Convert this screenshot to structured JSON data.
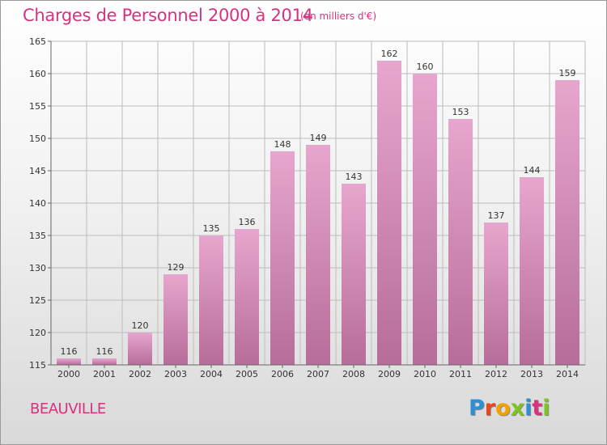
{
  "header": {
    "title": "Charges de Personnel 2000 à 2014",
    "subtitle": "(en milliers d'€)"
  },
  "footer": {
    "commune": "BEAUVILLE",
    "logo_letters": [
      "P",
      "r",
      "o",
      "x",
      "i",
      "t",
      "i"
    ],
    "logo_colors": [
      "#2e8fd6",
      "#e8481c",
      "#f2a200",
      "#7cc41e",
      "#2e8fd6",
      "#d9307f",
      "#7cc41e"
    ]
  },
  "colors": {
    "bar_top": "#e7a6cd",
    "bar_bottom": "#b66d99",
    "accent": "#d9307f",
    "grid": "#bcbcbc"
  },
  "chart_data": {
    "type": "bar",
    "title": "Charges de Personnel 2000 à 2014",
    "subtitle": "(en milliers d'€)",
    "xlabel": "",
    "ylabel": "",
    "categories": [
      "2000",
      "2001",
      "2002",
      "2003",
      "2004",
      "2005",
      "2006",
      "2007",
      "2008",
      "2009",
      "2010",
      "2011",
      "2012",
      "2013",
      "2014"
    ],
    "values": [
      116,
      116,
      120,
      129,
      135,
      136,
      148,
      149,
      143,
      162,
      160,
      153,
      137,
      144,
      159
    ],
    "ylim": [
      115,
      165
    ],
    "yticks": [
      115,
      120,
      125,
      130,
      135,
      140,
      145,
      150,
      155,
      160,
      165
    ],
    "grid": true,
    "data_labels": true
  }
}
